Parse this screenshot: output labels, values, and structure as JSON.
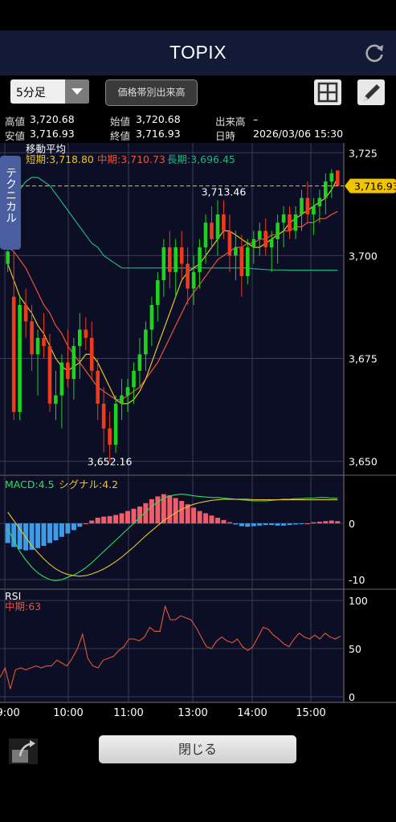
{
  "header": {
    "title": "TOPIX"
  },
  "toolbar": {
    "interval": "5分足",
    "volume_button": "価格帯別出来高"
  },
  "info": {
    "high_label": "高値",
    "high_value": "3,720.68",
    "low_label": "安値",
    "low_value": "3,716.93",
    "open_label": "始値",
    "open_value": "3,720.68",
    "close_label": "終値",
    "close_value": "3,716.93",
    "volume_label": "出来高",
    "volume_value": "–",
    "datetime_label": "日時",
    "datetime_value": "2026/03/06 15:30"
  },
  "side_tab": "テクニカル",
  "close_button": "閉じる",
  "colors": {
    "up": "#1ed31e",
    "down": "#f03a1c",
    "ma_short": "#e6c52b",
    "ma_mid": "#e8553a",
    "ma_long": "#1fb57e",
    "macd": "#2ee05a",
    "signal": "#e6c52b",
    "rsi": "#e8553a",
    "current_price_tag": "#f2c400"
  },
  "chart_data": [
    {
      "type": "candlestick",
      "title": "移動平均",
      "legend": [
        {
          "key": "short",
          "label": "短期:3,718.80"
        },
        {
          "key": "mid",
          "label": "中期:3,710.73"
        },
        {
          "key": "long",
          "label": "長期:3,696.45"
        }
      ],
      "ylim": [
        3647,
        3727
      ],
      "y_ticks": [
        "3,725",
        "3,700",
        "3,675",
        "3,650"
      ],
      "y_tick_values": [
        3725,
        3700,
        3675,
        3650
      ],
      "x_ticks": [
        "09:00",
        "10:00",
        "11:00",
        "13:00",
        "14:00",
        "15:00"
      ],
      "current_price": 3716.93,
      "current_price_label": "3,716.93",
      "annotations": [
        {
          "label": "3,713.46",
          "value": 3713.46,
          "candle": 36
        },
        {
          "label": "3,652.16",
          "value": 3652.16,
          "candle": 17
        }
      ],
      "candles": [
        [
          3698,
          3702,
          3696,
          3701
        ],
        [
          3690,
          3701,
          3660,
          3662
        ],
        [
          3662,
          3690,
          3660,
          3688
        ],
        [
          3688,
          3692,
          3680,
          3684
        ],
        [
          3684,
          3688,
          3672,
          3676
        ],
        [
          3676,
          3682,
          3666,
          3680
        ],
        [
          3680,
          3686,
          3675,
          3678
        ],
        [
          3678,
          3681,
          3662,
          3664
        ],
        [
          3664,
          3672,
          3660,
          3666
        ],
        [
          3666,
          3676,
          3658,
          3674
        ],
        [
          3674,
          3682,
          3668,
          3670
        ],
        [
          3670,
          3680,
          3665,
          3678
        ],
        [
          3678,
          3686,
          3670,
          3682
        ],
        [
          3682,
          3685,
          3677,
          3680
        ],
        [
          3680,
          3684,
          3670,
          3672
        ],
        [
          3672,
          3675,
          3660,
          3664
        ],
        [
          3664,
          3668,
          3652.16,
          3658
        ],
        [
          3658,
          3662,
          3650,
          3654
        ],
        [
          3654,
          3666,
          3652,
          3664
        ],
        [
          3664,
          3670,
          3660,
          3666
        ],
        [
          3666,
          3670,
          3662,
          3668
        ],
        [
          3668,
          3674,
          3664,
          3672
        ],
        [
          3672,
          3680,
          3668,
          3676
        ],
        [
          3676,
          3684,
          3672,
          3682
        ],
        [
          3682,
          3690,
          3678,
          3688
        ],
        [
          3688,
          3696,
          3684,
          3694
        ],
        [
          3694,
          3704,
          3690,
          3702
        ],
        [
          3702,
          3706,
          3692,
          3696
        ],
        [
          3696,
          3704,
          3690,
          3702
        ],
        [
          3702,
          3706,
          3694,
          3698
        ],
        [
          3698,
          3702,
          3688,
          3692
        ],
        [
          3692,
          3700,
          3688,
          3696
        ],
        [
          3696,
          3704,
          3692,
          3702
        ],
        [
          3702,
          3710,
          3698,
          3708
        ],
        [
          3708,
          3712,
          3702,
          3704
        ],
        [
          3704,
          3713.46,
          3700,
          3710
        ],
        [
          3710,
          3713.46,
          3704,
          3706
        ],
        [
          3706,
          3710,
          3696,
          3700
        ],
        [
          3700,
          3706,
          3694,
          3702
        ],
        [
          3702,
          3705,
          3690,
          3695
        ],
        [
          3695,
          3704,
          3693,
          3702
        ],
        [
          3702,
          3706,
          3698,
          3704
        ],
        [
          3704,
          3708,
          3700,
          3706
        ],
        [
          3706,
          3709,
          3700,
          3702
        ],
        [
          3702,
          3706,
          3696,
          3704
        ],
        [
          3704,
          3710,
          3698,
          3708
        ],
        [
          3708,
          3712,
          3702,
          3710
        ],
        [
          3710,
          3712,
          3704,
          3706
        ],
        [
          3706,
          3712,
          3704,
          3710
        ],
        [
          3710,
          3716,
          3706,
          3714
        ],
        [
          3714,
          3718,
          3708,
          3710
        ],
        [
          3710,
          3714,
          3705,
          3712
        ],
        [
          3712,
          3716,
          3708,
          3714
        ],
        [
          3714,
          3720,
          3710,
          3718
        ],
        [
          3718,
          3721,
          3714,
          3720
        ],
        [
          3720.68,
          3720.68,
          3716.93,
          3716.93
        ]
      ],
      "ma_short": [
        3698,
        3694,
        3690,
        3688,
        3686,
        3683,
        3681,
        3678,
        3675,
        3673,
        3672,
        3673,
        3674,
        3676,
        3676,
        3674,
        3671,
        3668,
        3665,
        3664,
        3664,
        3665,
        3667,
        3670,
        3674,
        3678,
        3682,
        3686,
        3690,
        3694,
        3696,
        3697,
        3698,
        3700,
        3702,
        3704,
        3706,
        3706,
        3705,
        3704,
        3703,
        3702,
        3702,
        3703,
        3704,
        3705,
        3706,
        3708,
        3709,
        3710,
        3711,
        3712,
        3713,
        3714,
        3716,
        3718.8
      ],
      "ma_mid": [
        3702,
        3701,
        3699,
        3697,
        3694,
        3691,
        3688,
        3686,
        3683,
        3681,
        3678,
        3676,
        3674,
        3672,
        3670,
        3668,
        3667,
        3666,
        3665,
        3665,
        3666,
        3667,
        3668,
        3670,
        3672,
        3674,
        3677,
        3680,
        3683,
        3686,
        3689,
        3691,
        3693,
        3695,
        3697,
        3699,
        3700,
        3701,
        3702,
        3702,
        3703,
        3703,
        3704,
        3704,
        3705,
        3705,
        3706,
        3706,
        3707,
        3707,
        3708,
        3708,
        3709,
        3709,
        3710,
        3710.73
      ],
      "ma_long": [
        3710,
        3713,
        3716,
        3718,
        3719,
        3719,
        3718,
        3717,
        3715,
        3713,
        3711,
        3709,
        3707,
        3705,
        3703,
        3702,
        3700,
        3699,
        3698,
        3697,
        3697,
        3697,
        3697,
        3697,
        3697,
        3697,
        3697,
        3697,
        3697,
        3697,
        3697,
        3697,
        3697,
        3697,
        3697,
        3697,
        3697,
        3697,
        3697,
        3697,
        3697,
        3696.8,
        3696.7,
        3696.6,
        3696.5,
        3696.5,
        3696.5,
        3696.45,
        3696.45,
        3696.45,
        3696.45,
        3696.45,
        3696.45,
        3696.45,
        3696.45,
        3696.45
      ]
    },
    {
      "type": "bar",
      "title": "MACD",
      "legend": [
        {
          "key": "macd",
          "label": "MACD:4.5"
        },
        {
          "key": "signal",
          "label": "シグナル:4.2"
        }
      ],
      "ylim": [
        -12,
        8
      ],
      "y_ticks": [
        "0",
        "-10"
      ],
      "y_tick_values": [
        0,
        -10
      ],
      "histogram": [
        -3.5,
        -4.2,
        -4.6,
        -4.8,
        -4.7,
        -4.4,
        -4.0,
        -3.5,
        -3.0,
        -2.4,
        -1.8,
        -1.2,
        -0.6,
        0,
        0.5,
        1.0,
        1.2,
        1.3,
        1.5,
        1.8,
        2.2,
        2.6,
        3.0,
        3.6,
        4.3,
        4.8,
        5.2,
        5.0,
        4.5,
        4.0,
        3.4,
        2.8,
        2.2,
        1.8,
        1.4,
        1.0,
        0.6,
        0.2,
        -0.2,
        -0.5,
        -0.6,
        -0.5,
        -0.4,
        -0.3,
        -0.3,
        -0.4,
        -0.4,
        -0.3,
        -0.2,
        -0.1,
        0,
        0.2,
        0.3,
        0.4,
        0.5,
        0.4
      ],
      "macd": [
        -1,
        -3,
        -5,
        -6.5,
        -7.8,
        -8.8,
        -9.5,
        -10,
        -10.2,
        -10,
        -9.6,
        -9.2,
        -8.6,
        -7.9,
        -7.0,
        -6.0,
        -5,
        -4,
        -3,
        -2,
        -1,
        0,
        1,
        2,
        3,
        3.8,
        4.5,
        4.9,
        5.1,
        5.2,
        5.1,
        4.9,
        4.8,
        4.7,
        4.6,
        4.6,
        4.5,
        4.4,
        4.3,
        4.2,
        4.1,
        4.0,
        4.0,
        4.0,
        4.1,
        4.2,
        4.3,
        4.3,
        4.4,
        4.4,
        4.5,
        4.5,
        4.6,
        4.6,
        4.5,
        4.5
      ],
      "signal": [
        2,
        0.5,
        -1,
        -2.5,
        -4,
        -5.2,
        -6.3,
        -7.3,
        -8.1,
        -8.7,
        -9.1,
        -9.3,
        -9.4,
        -9.3,
        -9.0,
        -8.6,
        -8.1,
        -7.5,
        -6.8,
        -6.0,
        -5.1,
        -4.2,
        -3.2,
        -2.2,
        -1.3,
        -0.4,
        0.5,
        1.2,
        1.9,
        2.5,
        3.0,
        3.4,
        3.7,
        3.9,
        4.1,
        4.2,
        4.3,
        4.3,
        4.3,
        4.3,
        4.3,
        4.2,
        4.2,
        4.2,
        4.2,
        4.2,
        4.2,
        4.2,
        4.2,
        4.2,
        4.2,
        4.2,
        4.2,
        4.2,
        4.2,
        4.2
      ]
    },
    {
      "type": "line",
      "title": "RSI",
      "legend": [
        {
          "key": "rsi",
          "label": "中期:63"
        }
      ],
      "ylim": [
        0,
        100
      ],
      "y_ticks": [
        "100",
        "50",
        "0"
      ],
      "y_tick_values": [
        100,
        50,
        0
      ],
      "x_ticks": [
        "09:00",
        "10:00",
        "11:00",
        "13:00",
        "14:00",
        "15:00"
      ],
      "values": [
        20,
        30,
        8,
        28,
        30,
        28,
        30,
        32,
        30,
        32,
        32,
        38,
        35,
        32,
        40,
        50,
        65,
        40,
        32,
        30,
        38,
        40,
        42,
        48,
        52,
        60,
        60,
        58,
        62,
        72,
        68,
        68,
        94,
        80,
        80,
        84,
        82,
        80,
        72,
        62,
        52,
        50,
        58,
        62,
        58,
        56,
        60,
        52,
        48,
        52,
        62,
        72,
        70,
        64,
        60,
        55,
        52,
        60,
        66,
        62,
        60,
        64,
        60,
        66,
        62,
        60,
        63
      ]
    }
  ]
}
